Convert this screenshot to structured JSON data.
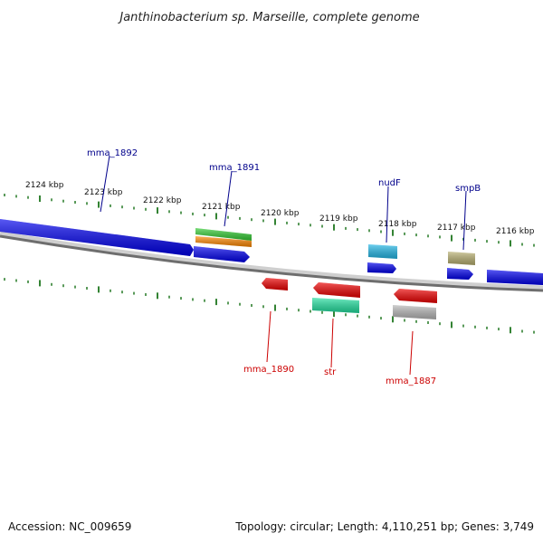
{
  "title": "Janthinobacterium sp. Marseille, complete genome",
  "footer": {
    "accession": "Accession: NC_009659",
    "summary": "Topology: circular; Length: 4,110,251 bp; Genes: 3,749"
  },
  "colors": {
    "forward_label": "#00008b",
    "reverse_label": "#cc0000",
    "tick": "#006400",
    "backbone": "#777777",
    "forward_gene": "#0000ee",
    "reverse_gene": "#ee0000"
  },
  "scale_labels": [
    "2124 kbp",
    "2123 kbp",
    "2122 kbp",
    "2121 kbp",
    "2120 kbp",
    "2119 kbp",
    "2118 kbp",
    "2117 kbp",
    "2116 kbp"
  ],
  "forward_labels": [
    "mma_1892",
    "mma_1891",
    "nudF",
    "smpB"
  ],
  "reverse_labels": [
    "mma_1890",
    "str",
    "mma_1887"
  ],
  "feature_colors": {
    "green": "#33cc33",
    "orange": "#ff8800",
    "cyan": "#22b8e8",
    "olive": "#b8b070",
    "teal": "#22e0a0",
    "gray": "#b8b8b8"
  }
}
